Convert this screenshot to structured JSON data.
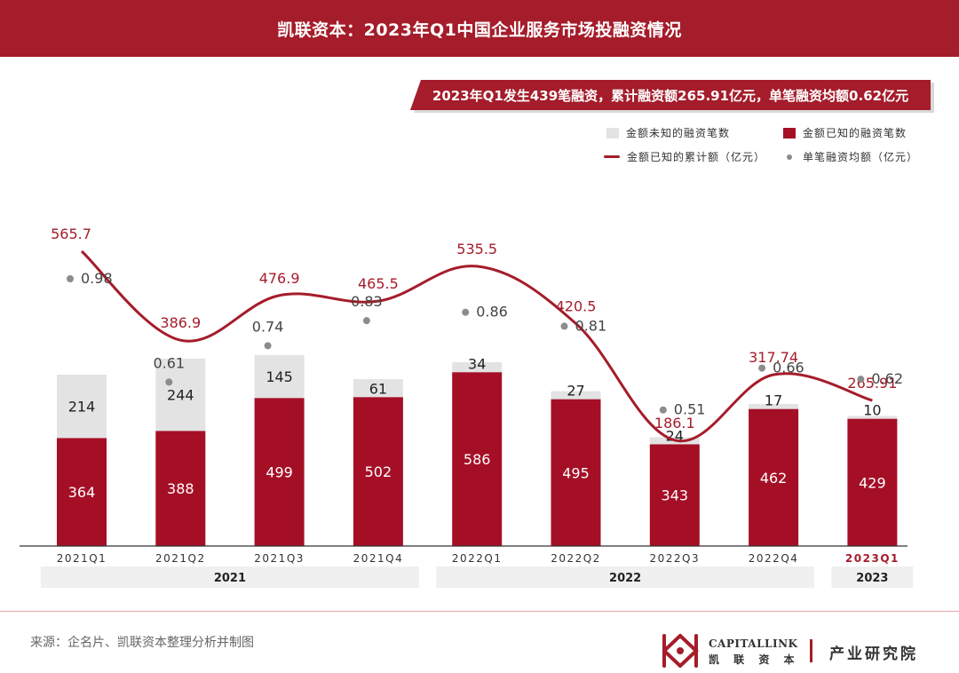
{
  "header": {
    "title": "凯联资本：2023年Q1中国企业服务市场投融资情况"
  },
  "banner": {
    "text": "2023年Q1发生439笔融资，累计融资额265.91亿元，单笔融资均额0.62亿元"
  },
  "legend": {
    "unknown_count": "金额未知的融资笔数",
    "known_count": "金额已知的融资笔数",
    "cumulative": "金额已知的累计额（亿元）",
    "average": "单笔融资均额（亿元）"
  },
  "colors": {
    "brand": "#a51c2a",
    "bar_known": "#a50f26",
    "bar_unknown": "#e3e3e3",
    "line": "#a51c2a",
    "dot": "#8c8c8c",
    "year_band": "#f0f0f0"
  },
  "chart_data": {
    "type": "bar",
    "categories": [
      "2021Q1",
      "2021Q2",
      "2021Q3",
      "2021Q4",
      "2022Q1",
      "2022Q2",
      "2022Q3",
      "2022Q4",
      "2023Q1"
    ],
    "highlight_category": "2023Q1",
    "years": [
      {
        "label": "2021",
        "from": 0,
        "to": 3
      },
      {
        "label": "2022",
        "from": 4,
        "to": 7
      },
      {
        "label": "2023",
        "from": 8,
        "to": 8
      }
    ],
    "series": [
      {
        "name": "金额已知的融资笔数",
        "type": "bar",
        "stack": "count",
        "values": [
          364,
          388,
          499,
          502,
          586,
          495,
          343,
          462,
          429
        ]
      },
      {
        "name": "金额未知的融资笔数",
        "type": "bar",
        "stack": "count",
        "values": [
          214,
          244,
          145,
          61,
          34,
          27,
          24,
          17,
          10
        ]
      },
      {
        "name": "金额已知的累计额（亿元）",
        "type": "line",
        "values": [
          565.7,
          386.9,
          476.9,
          465.5,
          535.5,
          420.5,
          186.1,
          317.74,
          265.91
        ],
        "labels": [
          "565.7",
          "386.9",
          "476.9",
          "465.5",
          "535.5",
          "420.5",
          "186.1",
          "317.74",
          "265.91"
        ]
      },
      {
        "name": "单笔融资均额（亿元）",
        "type": "scatter",
        "values": [
          0.98,
          0.61,
          0.74,
          0.83,
          0.86,
          0.81,
          0.51,
          0.66,
          0.62
        ]
      }
    ],
    "legend_position": "top-right",
    "grid": false
  },
  "footer": {
    "source": "来源：企名片、凯联资本整理分析并制图",
    "brand_en": "CAPITALLINK",
    "brand_cn": "凯 联 资 本",
    "institute": "产业研究院"
  }
}
